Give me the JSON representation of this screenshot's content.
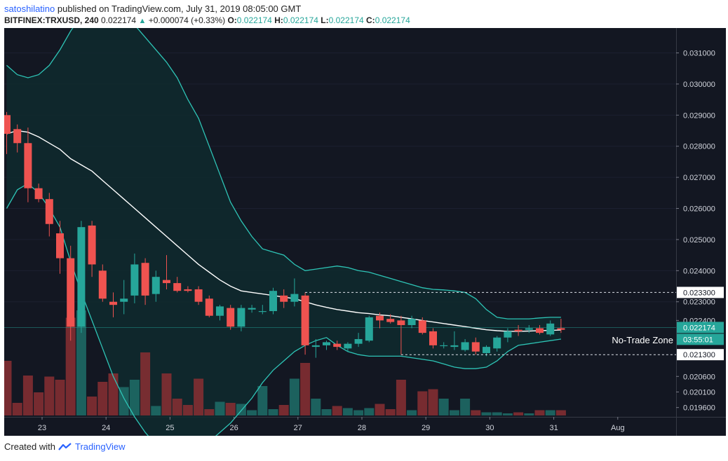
{
  "header": {
    "publisher": "satoshilatino",
    "published_text": "published on TradingView.com, July 31, 2019 08:05:00 GMT",
    "symbol": "BITFINEX:TRXUSD, 240",
    "last_price": "0.022174",
    "change": "+0.000074 (+0.33%)",
    "ohlc": {
      "o_label": "O:",
      "o": "0.022174",
      "h_label": "H:",
      "h": "0.022174",
      "l_label": "L:",
      "l": "0.022174",
      "c_label": "C:",
      "c": "0.022174"
    }
  },
  "footer": {
    "created_with": "Created with",
    "brand": "TradingView"
  },
  "colors": {
    "background": "#131722",
    "up": "#26a69a",
    "down": "#ef5350",
    "band": "#2ec4b6",
    "midline": "#ffffff",
    "axis_text": "#d1d4dc",
    "band_fill": "#0f2a2e"
  },
  "chart_data": {
    "type": "candlestick",
    "annotation": "No-Trade Zone",
    "x_ticks": [
      "23",
      "24",
      "25",
      "26",
      "27",
      "28",
      "29",
      "30",
      "31",
      "Aug"
    ],
    "y_ticks": [
      "0.031000",
      "0.030000",
      "0.029000",
      "0.028000",
      "0.027000",
      "0.026000",
      "0.025000",
      "0.024000",
      "0.023000",
      "0.022400",
      "0.020600",
      "0.020100",
      "0.019600"
    ],
    "ylim": [
      0.0193,
      0.0318
    ],
    "price_labels": {
      "last": "0.022174",
      "countdown": "03:55:01",
      "level_high": "0.023300",
      "level_low": "0.021300"
    },
    "candles": [
      {
        "o": 0.029,
        "h": 0.0291,
        "l": 0.02775,
        "c": 0.0284
      },
      {
        "o": 0.02855,
        "h": 0.0287,
        "l": 0.0278,
        "c": 0.0281
      },
      {
        "o": 0.0281,
        "h": 0.0286,
        "l": 0.0262,
        "c": 0.02665
      },
      {
        "o": 0.02665,
        "h": 0.0268,
        "l": 0.0262,
        "c": 0.0263
      },
      {
        "o": 0.0263,
        "h": 0.0265,
        "l": 0.0251,
        "c": 0.0255
      },
      {
        "o": 0.0252,
        "h": 0.0256,
        "l": 0.0239,
        "c": 0.0244
      },
      {
        "o": 0.0244,
        "h": 0.0248,
        "l": 0.02175,
        "c": 0.0222
      },
      {
        "o": 0.0222,
        "h": 0.0256,
        "l": 0.022,
        "c": 0.0254
      },
      {
        "o": 0.02545,
        "h": 0.0256,
        "l": 0.0238,
        "c": 0.0242
      },
      {
        "o": 0.024,
        "h": 0.0242,
        "l": 0.023,
        "c": 0.0231
      },
      {
        "o": 0.023,
        "h": 0.0233,
        "l": 0.0225,
        "c": 0.0229
      },
      {
        "o": 0.023,
        "h": 0.0237,
        "l": 0.0226,
        "c": 0.0231
      },
      {
        "o": 0.0232,
        "h": 0.02455,
        "l": 0.02295,
        "c": 0.0242
      },
      {
        "o": 0.02425,
        "h": 0.0244,
        "l": 0.0229,
        "c": 0.0232
      },
      {
        "o": 0.02325,
        "h": 0.024,
        "l": 0.023,
        "c": 0.0238
      },
      {
        "o": 0.0237,
        "h": 0.0245,
        "l": 0.0234,
        "c": 0.0236
      },
      {
        "o": 0.0236,
        "h": 0.0238,
        "l": 0.0233,
        "c": 0.02335
      },
      {
        "o": 0.0234,
        "h": 0.0235,
        "l": 0.0233,
        "c": 0.02335
      },
      {
        "o": 0.0234,
        "h": 0.0235,
        "l": 0.0229,
        "c": 0.023
      },
      {
        "o": 0.0231,
        "h": 0.0232,
        "l": 0.0225,
        "c": 0.02255
      },
      {
        "o": 0.02255,
        "h": 0.0229,
        "l": 0.0224,
        "c": 0.02285
      },
      {
        "o": 0.0228,
        "h": 0.0229,
        "l": 0.0221,
        "c": 0.0222
      },
      {
        "o": 0.0222,
        "h": 0.0229,
        "l": 0.02205,
        "c": 0.0228
      },
      {
        "o": 0.02275,
        "h": 0.0229,
        "l": 0.02265,
        "c": 0.0228
      },
      {
        "o": 0.0227,
        "h": 0.0229,
        "l": 0.0226,
        "c": 0.0227
      },
      {
        "o": 0.0227,
        "h": 0.02345,
        "l": 0.0226,
        "c": 0.02335
      },
      {
        "o": 0.0232,
        "h": 0.0234,
        "l": 0.0228,
        "c": 0.023
      },
      {
        "o": 0.023,
        "h": 0.02375,
        "l": 0.02285,
        "c": 0.02325
      },
      {
        "o": 0.0232,
        "h": 0.0233,
        "l": 0.0213,
        "c": 0.0216
      },
      {
        "o": 0.02155,
        "h": 0.0218,
        "l": 0.0212,
        "c": 0.0216
      },
      {
        "o": 0.0216,
        "h": 0.02175,
        "l": 0.02145,
        "c": 0.0217
      },
      {
        "o": 0.02165,
        "h": 0.02175,
        "l": 0.02145,
        "c": 0.02155
      },
      {
        "o": 0.0215,
        "h": 0.0217,
        "l": 0.0214,
        "c": 0.02165
      },
      {
        "o": 0.02165,
        "h": 0.022,
        "l": 0.02155,
        "c": 0.0218
      },
      {
        "o": 0.02175,
        "h": 0.02255,
        "l": 0.0217,
        "c": 0.0225
      },
      {
        "o": 0.02255,
        "h": 0.02265,
        "l": 0.02215,
        "c": 0.0224
      },
      {
        "o": 0.02245,
        "h": 0.0226,
        "l": 0.0223,
        "c": 0.02235
      },
      {
        "o": 0.0224,
        "h": 0.02255,
        "l": 0.0213,
        "c": 0.02225
      },
      {
        "o": 0.02225,
        "h": 0.02255,
        "l": 0.02215,
        "c": 0.02245
      },
      {
        "o": 0.0224,
        "h": 0.0225,
        "l": 0.02195,
        "c": 0.022
      },
      {
        "o": 0.02205,
        "h": 0.02215,
        "l": 0.0215,
        "c": 0.0216
      },
      {
        "o": 0.0216,
        "h": 0.0217,
        "l": 0.0215,
        "c": 0.0216
      },
      {
        "o": 0.02155,
        "h": 0.02205,
        "l": 0.02145,
        "c": 0.0216
      },
      {
        "o": 0.02145,
        "h": 0.0218,
        "l": 0.0214,
        "c": 0.0217
      },
      {
        "o": 0.0217,
        "h": 0.02185,
        "l": 0.0213,
        "c": 0.0214
      },
      {
        "o": 0.02135,
        "h": 0.0216,
        "l": 0.02125,
        "c": 0.02155
      },
      {
        "o": 0.0215,
        "h": 0.0219,
        "l": 0.0214,
        "c": 0.02185
      },
      {
        "o": 0.02185,
        "h": 0.02215,
        "l": 0.0217,
        "c": 0.02205
      },
      {
        "o": 0.0221,
        "h": 0.02225,
        "l": 0.0219,
        "c": 0.02205
      },
      {
        "o": 0.0221,
        "h": 0.02225,
        "l": 0.022,
        "c": 0.02215
      },
      {
        "o": 0.02215,
        "h": 0.02225,
        "l": 0.02195,
        "c": 0.022
      },
      {
        "o": 0.02195,
        "h": 0.0224,
        "l": 0.0219,
        "c": 0.0223
      },
      {
        "o": 0.02215,
        "h": 0.02245,
        "l": 0.022,
        "c": 0.0221
      }
    ],
    "volumes": [
      0.52,
      0.12,
      0.38,
      0.22,
      0.37,
      0.34,
      0.93,
      1.0,
      0.18,
      0.32,
      0.4,
      0.27,
      0.34,
      0.6,
      0.09,
      0.4,
      0.16,
      0.1,
      0.35,
      0.06,
      0.13,
      0.12,
      0.11,
      0.05,
      0.28,
      0.06,
      0.1,
      0.35,
      0.5,
      0.16,
      0.06,
      0.09,
      0.07,
      0.05,
      0.07,
      0.11,
      0.06,
      0.34,
      0.05,
      0.23,
      0.25,
      0.16,
      0.05,
      0.16,
      0.05,
      0.03,
      0.03,
      0.02,
      0.03,
      0.02,
      0.05,
      0.05,
      0.05
    ],
    "bollinger": {
      "upper": [
        0.0306,
        0.0303,
        0.0302,
        0.0303,
        0.0306,
        0.0311,
        0.0317,
        0.0322,
        0.0325,
        0.0326,
        0.0325,
        0.03225,
        0.0319,
        0.0315,
        0.0311,
        0.0307,
        0.0302,
        0.0295,
        0.0289,
        0.028,
        0.0271,
        0.0262,
        0.0256,
        0.0251,
        0.0247,
        0.0246,
        0.0245,
        0.0242,
        0.024,
        0.02405,
        0.0241,
        0.02415,
        0.0241,
        0.024,
        0.02395,
        0.02385,
        0.02375,
        0.02365,
        0.02355,
        0.02345,
        0.0234,
        0.02338,
        0.02335,
        0.0233,
        0.0231,
        0.02275,
        0.0225,
        0.02245,
        0.02245,
        0.02245,
        0.02248,
        0.0225,
        0.0225
      ],
      "mid": [
        0.0284,
        0.0285,
        0.02845,
        0.0283,
        0.0281,
        0.0279,
        0.0276,
        0.0274,
        0.0272,
        0.0269,
        0.0266,
        0.0263,
        0.026,
        0.0257,
        0.0254,
        0.0251,
        0.0248,
        0.0245,
        0.0242,
        0.02395,
        0.0237,
        0.0235,
        0.02335,
        0.0233,
        0.02325,
        0.0232,
        0.02315,
        0.0231,
        0.023,
        0.0229,
        0.02282,
        0.02275,
        0.0227,
        0.02265,
        0.02262,
        0.02258,
        0.02255,
        0.0225,
        0.02245,
        0.0224,
        0.02235,
        0.0223,
        0.02225,
        0.0222,
        0.02215,
        0.0221,
        0.02207,
        0.02205,
        0.02205,
        0.02206,
        0.02207,
        0.02208,
        0.02209
      ],
      "lower": [
        0.026,
        0.0266,
        0.0268,
        0.0265,
        0.026,
        0.0254,
        0.0243,
        0.0233,
        0.0224,
        0.0215,
        0.0206,
        0.0199,
        0.0193,
        0.0188,
        0.0184,
        0.0181,
        0.018,
        0.0181,
        0.01825,
        0.0185,
        0.0188,
        0.0191,
        0.0195,
        0.0199,
        0.0204,
        0.0208,
        0.0211,
        0.0214,
        0.0216,
        0.02175,
        0.02185,
        0.0216,
        0.0214,
        0.0213,
        0.02125,
        0.02125,
        0.02125,
        0.02125,
        0.0212,
        0.02115,
        0.0211,
        0.021,
        0.0209,
        0.02085,
        0.02085,
        0.0209,
        0.0211,
        0.0214,
        0.0216,
        0.02165,
        0.0217,
        0.02175,
        0.0218
      ]
    }
  }
}
